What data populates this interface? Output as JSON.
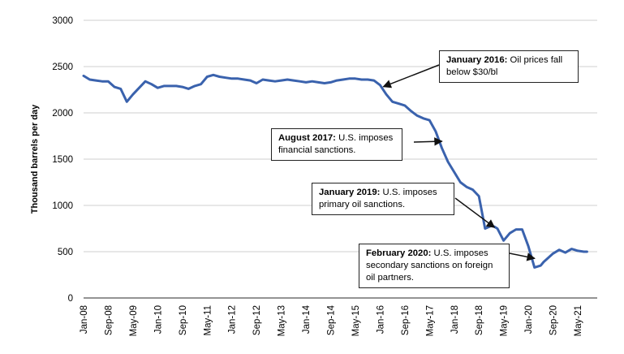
{
  "chart_data": {
    "type": "line",
    "title": "",
    "xlabel": "",
    "ylabel": "Thousand barrels per day",
    "ylim": [
      0,
      3000
    ],
    "yticks": [
      0,
      500,
      1000,
      1500,
      2000,
      2500,
      3000
    ],
    "grid": true,
    "line_color": "#3a62ad",
    "x_tick_labels": [
      "Jan-08",
      "Sep-08",
      "May-09",
      "Jan-10",
      "Sep-10",
      "May-11",
      "Jan-12",
      "Sep-12",
      "May-13",
      "Jan-14",
      "Sep-14",
      "May-15",
      "Jan-16",
      "Sep-16",
      "May-17",
      "Jan-18",
      "Sep-18",
      "May-19",
      "Jan-20",
      "Sep-20",
      "May-21"
    ],
    "x": [
      "2008-01",
      "2008-03",
      "2008-05",
      "2008-07",
      "2008-09",
      "2008-11",
      "2009-01",
      "2009-03",
      "2009-05",
      "2009-07",
      "2009-09",
      "2009-11",
      "2010-01",
      "2010-03",
      "2010-05",
      "2010-07",
      "2010-09",
      "2010-11",
      "2011-01",
      "2011-03",
      "2011-05",
      "2011-07",
      "2011-09",
      "2011-11",
      "2012-01",
      "2012-03",
      "2012-05",
      "2012-07",
      "2012-09",
      "2012-11",
      "2013-01",
      "2013-03",
      "2013-05",
      "2013-07",
      "2013-09",
      "2013-11",
      "2014-01",
      "2014-03",
      "2014-05",
      "2014-07",
      "2014-09",
      "2014-11",
      "2015-01",
      "2015-03",
      "2015-05",
      "2015-07",
      "2015-09",
      "2015-11",
      "2016-01",
      "2016-03",
      "2016-05",
      "2016-07",
      "2016-09",
      "2016-11",
      "2017-01",
      "2017-03",
      "2017-05",
      "2017-07",
      "2017-09",
      "2017-11",
      "2018-01",
      "2018-03",
      "2018-05",
      "2018-07",
      "2018-09",
      "2018-11",
      "2019-01",
      "2019-02",
      "2019-03",
      "2019-05",
      "2019-07",
      "2019-09",
      "2019-11",
      "2020-01",
      "2020-03",
      "2020-05",
      "2020-06",
      "2020-07",
      "2020-09",
      "2020-11",
      "2021-01",
      "2021-03",
      "2021-04",
      "2021-05",
      "2021-07",
      "2021-08"
    ],
    "series": [
      {
        "values": [
          2400,
          2360,
          2350,
          2340,
          2340,
          2280,
          2260,
          2120,
          2200,
          2270,
          2340,
          2310,
          2270,
          2290,
          2290,
          2290,
          2280,
          2260,
          2290,
          2310,
          2390,
          2410,
          2390,
          2380,
          2370,
          2370,
          2360,
          2350,
          2320,
          2360,
          2350,
          2340,
          2350,
          2360,
          2350,
          2340,
          2330,
          2340,
          2330,
          2320,
          2330,
          2350,
          2360,
          2370,
          2370,
          2360,
          2360,
          2350,
          2300,
          2200,
          2120,
          2100,
          2080,
          2020,
          1970,
          1940,
          1920,
          1800,
          1620,
          1470,
          1360,
          1250,
          1200,
          1170,
          1100,
          750,
          780,
          770,
          750,
          620,
          700,
          740,
          740,
          560,
          330,
          350,
          390,
          420,
          480,
          520,
          490,
          530,
          520,
          510,
          500,
          500
        ]
      }
    ],
    "annotations": [
      {
        "date_bold": "January 2016:",
        "text": "Oil prices fall below $30/bl",
        "points_to": "2016-01"
      },
      {
        "date_bold": "August 2017:",
        "text": "U.S. imposes financial sanctions.",
        "points_to": "2017-08"
      },
      {
        "date_bold": "January 2019:",
        "text": "U.S. imposes primary oil sanctions.",
        "points_to": "2019-01"
      },
      {
        "date_bold": "February 2020:",
        "text": "U.S. imposes secondary sanctions on foreign oil partners.",
        "points_to": "2020-02"
      }
    ]
  }
}
